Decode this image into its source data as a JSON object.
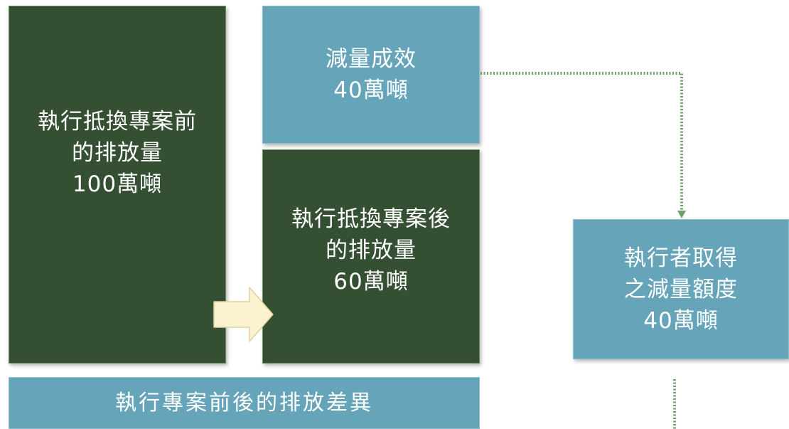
{
  "before_box": {
    "lines": [
      "執行抵換專案前",
      "的排放量",
      "100萬噸"
    ]
  },
  "reduction_box": {
    "lines": [
      "減量成效",
      "40萬噸"
    ]
  },
  "after_box": {
    "lines": [
      "執行抵換專案後",
      "的排放量",
      "60萬噸"
    ]
  },
  "credits_box": {
    "lines": [
      "執行者取得",
      "之減量額度",
      "40萬噸"
    ]
  },
  "difference_bar": {
    "label": "執行專案前後的排放差異"
  },
  "colors": {
    "dark_green": "#344f32",
    "teal": "#66a5b9",
    "arrow_fill": "#fbf3cf",
    "connector": "#6f9d6c"
  }
}
